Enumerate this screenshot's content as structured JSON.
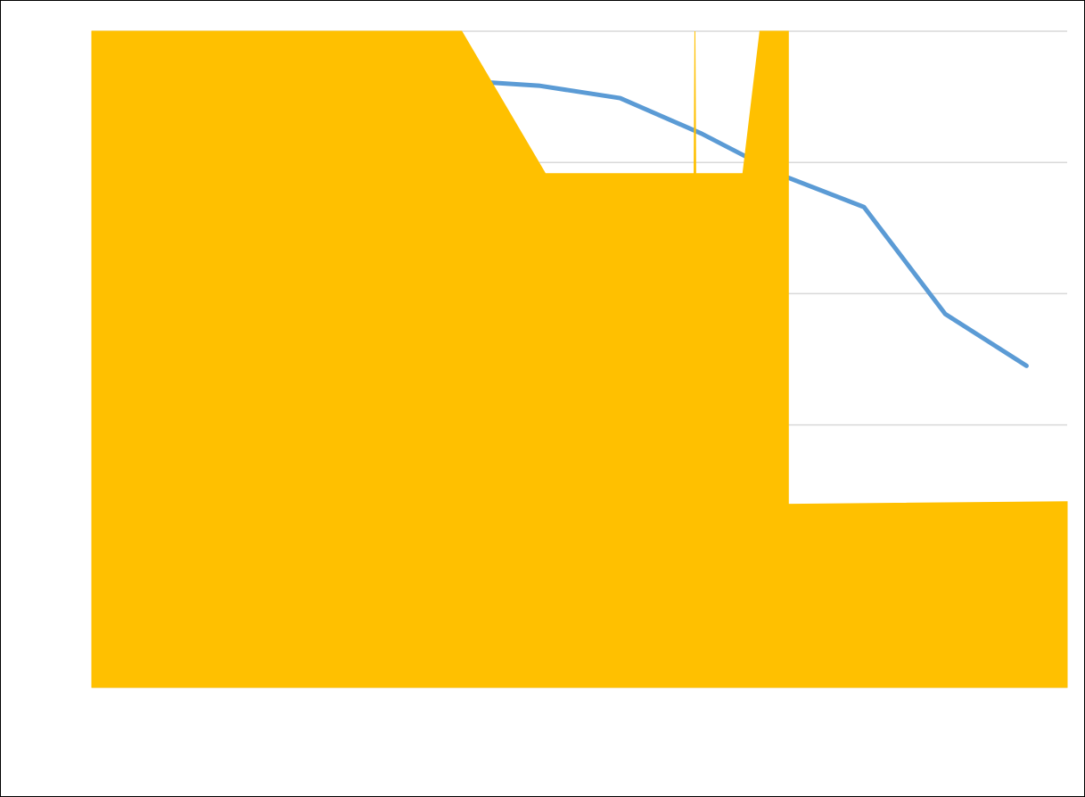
{
  "chart_data": {
    "type": "area-line",
    "xlim": [
      0,
      12
    ],
    "ylim": [
      0,
      100
    ],
    "yticks": [
      0,
      20,
      40,
      60,
      80,
      100
    ],
    "grid": true,
    "series": [
      {
        "type": "line",
        "color": "#5b9bd5",
        "x": [
          0.5,
          1.5,
          2.5,
          3.5,
          4.5,
          5.5,
          6.5,
          7.5,
          8.5,
          9.5,
          10.5,
          11.5
        ],
        "values": [
          97,
          96,
          95,
          94,
          92.5,
          91.7,
          89.8,
          84.4,
          78,
          73.2,
          56.9,
          49
        ]
      },
      {
        "type": "area",
        "color": "#ffc000",
        "x": [
          0,
          4.55,
          5.58,
          7.41,
          7.42,
          7.43,
          8.01,
          8.22,
          8.57,
          8.57,
          12
        ],
        "values": [
          100,
          100,
          78.3,
          78.3,
          100,
          78.3,
          78.3,
          100,
          100,
          27.9,
          28.3
        ]
      }
    ]
  }
}
